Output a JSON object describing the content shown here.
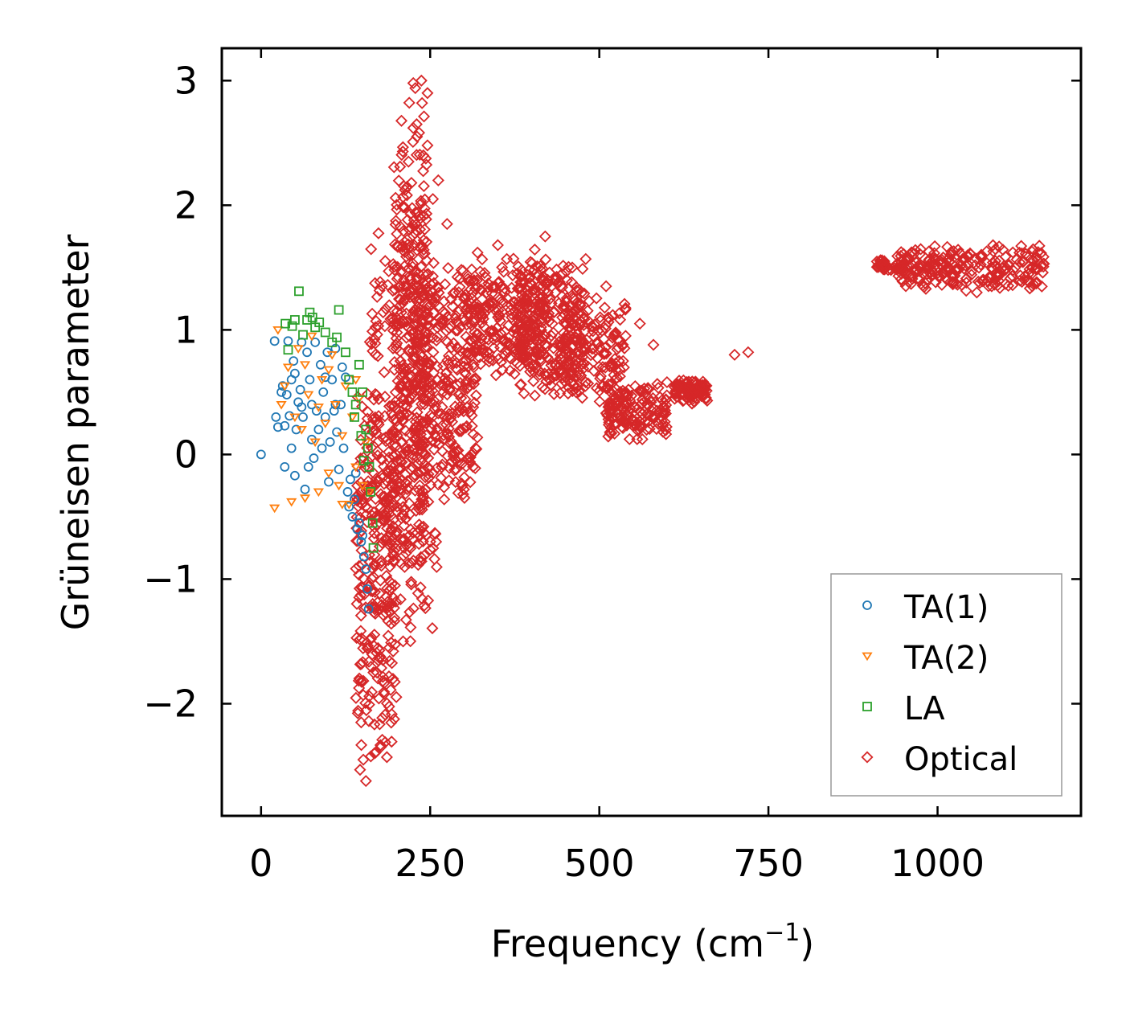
{
  "chart_data": {
    "type": "scatter",
    "title": "",
    "xlabel": "Frequency (cm",
    "xlabel_sup": "−1",
    "xlabel_end": ")",
    "ylabel": "Grüneisen parameter",
    "xlim": [
      -58,
      1212
    ],
    "ylim": [
      -2.9,
      3.26
    ],
    "xticks": [
      0,
      250,
      500,
      750,
      1000
    ],
    "xtick_labels": [
      "0",
      "250",
      "500",
      "750",
      "1000"
    ],
    "yticks": [
      -2,
      -1,
      0,
      1,
      2,
      3
    ],
    "ytick_labels": [
      "−2",
      "−1",
      "0",
      "1",
      "2",
      "3"
    ],
    "legend_position": "lower-right",
    "series": [
      {
        "name": "TA(1)",
        "marker": "circle",
        "color": "#1f77b4",
        "points": [
          [
            0,
            0
          ],
          [
            20,
            0.91
          ],
          [
            22,
            0.3
          ],
          [
            25,
            0.22
          ],
          [
            30,
            0.5
          ],
          [
            32,
            0.55
          ],
          [
            35,
            0.23
          ],
          [
            38,
            0.48
          ],
          [
            40,
            0.91
          ],
          [
            42,
            0.31
          ],
          [
            45,
            0.6
          ],
          [
            48,
            0.75
          ],
          [
            50,
            0.65
          ],
          [
            52,
            0.2
          ],
          [
            55,
            0.42
          ],
          [
            58,
            0.52
          ],
          [
            60,
            0.9
          ],
          [
            62,
            0.3
          ],
          [
            65,
            -0.28
          ],
          [
            68,
            0.82
          ],
          [
            70,
            -0.1
          ],
          [
            72,
            0.6
          ],
          [
            75,
            0.4
          ],
          [
            78,
            -0.03
          ],
          [
            80,
            0.9
          ],
          [
            82,
            0.35
          ],
          [
            85,
            0.2
          ],
          [
            88,
            0.72
          ],
          [
            90,
            0.05
          ],
          [
            92,
            0.5
          ],
          [
            95,
            0.3
          ],
          [
            98,
            0.82
          ],
          [
            100,
            -0.22
          ],
          [
            102,
            0.1
          ],
          [
            105,
            0.6
          ],
          [
            108,
            0.35
          ],
          [
            110,
            0.85
          ],
          [
            112,
            0.18
          ],
          [
            115,
            -0.12
          ],
          [
            118,
            0.4
          ],
          [
            120,
            0.7
          ],
          [
            122,
            0.05
          ],
          [
            125,
            0.62
          ],
          [
            128,
            -0.3
          ],
          [
            130,
            -0.42
          ],
          [
            132,
            -0.2
          ],
          [
            135,
            -0.5
          ],
          [
            138,
            -0.36
          ],
          [
            140,
            -0.15
          ],
          [
            142,
            -0.6
          ],
          [
            145,
            -0.55
          ],
          [
            148,
            -0.7
          ],
          [
            150,
            -0.65
          ],
          [
            152,
            -0.82
          ],
          [
            155,
            -0.92
          ],
          [
            157,
            -1.08
          ],
          [
            159,
            -1.24
          ],
          [
            50,
            -0.17
          ],
          [
            45,
            0.05
          ],
          [
            35,
            -0.1
          ],
          [
            60,
            0.38
          ],
          [
            75,
            0.12
          ],
          [
            95,
            0.62
          ],
          [
            110,
            0.4
          ]
        ]
      },
      {
        "name": "TA(2)",
        "marker": "triangle_down",
        "color": "#ff7f0e",
        "points": [
          [
            20,
            -0.43
          ],
          [
            25,
            1.0
          ],
          [
            30,
            0.4
          ],
          [
            35,
            0.55
          ],
          [
            40,
            0.7
          ],
          [
            45,
            -0.38
          ],
          [
            50,
            0.3
          ],
          [
            55,
            0.85
          ],
          [
            60,
            0.2
          ],
          [
            65,
            -0.35
          ],
          [
            70,
            0.48
          ],
          [
            75,
            0.95
          ],
          [
            80,
            0.1
          ],
          [
            85,
            -0.3
          ],
          [
            90,
            0.6
          ],
          [
            95,
            0.25
          ],
          [
            100,
            -0.15
          ],
          [
            105,
            0.8
          ],
          [
            110,
            0.4
          ],
          [
            115,
            -0.25
          ],
          [
            120,
            0.15
          ],
          [
            125,
            0.55
          ],
          [
            130,
            -0.4
          ],
          [
            135,
            0.3
          ],
          [
            140,
            -0.1
          ],
          [
            145,
            0.45
          ],
          [
            150,
            -0.25
          ],
          [
            155,
            0.1
          ],
          [
            160,
            -0.3
          ],
          [
            65,
            0.72
          ],
          [
            85,
            0.38
          ],
          [
            100,
            0.68
          ],
          [
            120,
            -0.4
          ],
          [
            140,
            0.6
          ]
        ]
      },
      {
        "name": "LA",
        "marker": "square",
        "color": "#2ca02c",
        "points": [
          [
            36,
            1.05
          ],
          [
            40,
            0.84
          ],
          [
            46,
            1.03
          ],
          [
            50,
            1.08
          ],
          [
            56,
            1.31
          ],
          [
            62,
            0.96
          ],
          [
            68,
            1.08
          ],
          [
            72,
            1.14
          ],
          [
            76,
            1.1
          ],
          [
            80,
            1.02
          ],
          [
            86,
            1.06
          ],
          [
            95,
            0.98
          ],
          [
            105,
            0.9
          ],
          [
            112,
            0.94
          ],
          [
            115,
            1.16
          ],
          [
            125,
            0.82
          ],
          [
            130,
            0.6
          ],
          [
            135,
            0.5
          ],
          [
            140,
            0.4
          ],
          [
            145,
            0.72
          ],
          [
            150,
            0.5
          ],
          [
            155,
            0.2
          ],
          [
            158,
            0.05
          ],
          [
            160,
            -0.1
          ],
          [
            162,
            -0.3
          ],
          [
            165,
            -0.55
          ],
          [
            166,
            -0.75
          ],
          [
            148,
            0.15
          ],
          [
            152,
            -0.05
          ],
          [
            138,
            0.3
          ]
        ]
      },
      {
        "name": "Optical",
        "marker": "diamond",
        "color": "#d62728",
        "clusters": [
          {
            "x_range": [
              195,
              245
            ],
            "y_range": [
              -1.3,
              2.9
            ],
            "count": 360
          },
          {
            "x_range": [
              140,
              200
            ],
            "y_range": [
              -2.6,
              0.7
            ],
            "count": 260
          },
          {
            "x_range": [
              160,
              260
            ],
            "y_range": [
              -1.6,
              1.9
            ],
            "count": 220
          },
          {
            "x_range": [
              240,
              320
            ],
            "y_range": [
              -0.5,
              1.6
            ],
            "count": 260
          },
          {
            "x_range": [
              300,
              420
            ],
            "y_range": [
              0.6,
              1.6
            ],
            "count": 260
          },
          {
            "x_range": [
              380,
              480
            ],
            "y_range": [
              0.4,
              1.7
            ],
            "count": 220
          },
          {
            "x_range": [
              440,
              540
            ],
            "y_range": [
              0.4,
              1.3
            ],
            "count": 160
          },
          {
            "x_range": [
              510,
              600
            ],
            "y_range": [
              0.1,
              0.6
            ],
            "count": 160
          },
          {
            "x_range": [
              610,
              660
            ],
            "y_range": [
              0.4,
              0.6
            ],
            "count": 90
          },
          {
            "x_range": [
              910,
              950
            ],
            "y_range": [
              1.47,
              1.57
            ],
            "count": 40
          },
          {
            "x_range": [
              940,
              1160
            ],
            "y_range": [
              1.3,
              1.7
            ],
            "count": 240
          }
        ],
        "points": [
          [
            225,
            2.98
          ],
          [
            237,
            3.0
          ],
          [
            228,
            2.94
          ],
          [
            246,
            2.9
          ],
          [
            238,
            2.82
          ],
          [
            230,
            2.65
          ],
          [
            225,
            2.62
          ],
          [
            218,
            2.35
          ],
          [
            246,
            2.48
          ],
          [
            240,
            2.4
          ],
          [
            262,
            2.2
          ],
          [
            254,
            2.05
          ],
          [
            275,
            1.85
          ],
          [
            320,
            1.62
          ],
          [
            350,
            1.68
          ],
          [
            420,
            1.75
          ],
          [
            460,
            1.5
          ],
          [
            510,
            1.35
          ],
          [
            560,
            1.05
          ],
          [
            580,
            0.88
          ],
          [
            600,
            0.58
          ],
          [
            700,
            0.8
          ],
          [
            720,
            0.82
          ],
          [
            360,
            1.3
          ],
          [
            300,
            -0.28
          ],
          [
            210,
            -1.5
          ],
          [
            195,
            -1.8
          ],
          [
            180,
            -1.65
          ],
          [
            165,
            -1.2
          ],
          [
            160,
            -1.05
          ],
          [
            155,
            -2.62
          ],
          [
            148,
            -2.15
          ],
          [
            183,
            1.03
          ],
          [
            170,
            1.07
          ],
          [
            165,
            0.83
          ],
          [
            1058,
            1.3
          ],
          [
            1080,
            1.35
          ],
          [
            1140,
            1.35
          ]
        ]
      }
    ]
  }
}
